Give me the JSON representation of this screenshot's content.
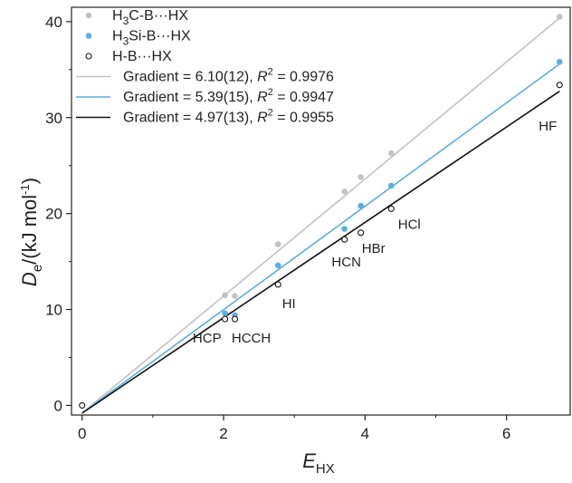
{
  "chart_data": {
    "type": "scatter",
    "xlabel": {
      "main": "E",
      "sub": "HX"
    },
    "ylabel": {
      "main": "D",
      "sub": "e",
      "rest": "/(kJ mol",
      "sup": "-1",
      "close": ")"
    },
    "xlim": [
      -0.15,
      6.9
    ],
    "ylim": [
      -1,
      41.5
    ],
    "x_ticks": [
      0,
      2,
      4,
      6
    ],
    "y_ticks": [
      0,
      10,
      20,
      30,
      40
    ],
    "grid": false,
    "legend_position": "top-left",
    "series": [
      {
        "name": {
          "pre": "H",
          "sub": "3",
          "post": "C-B···HX"
        },
        "color": "#c2c2c2",
        "marker": "filled",
        "x": [
          2.02,
          2.16,
          2.77,
          3.71,
          3.94,
          4.37,
          6.75
        ],
        "y": [
          11.5,
          11.4,
          16.8,
          22.3,
          23.8,
          26.3,
          40.5
        ]
      },
      {
        "name": {
          "pre": "H",
          "sub": "3",
          "post": "Si-B···HX"
        },
        "color": "#5aaee2",
        "marker": "filled",
        "x": [
          2.02,
          2.16,
          2.77,
          3.71,
          3.94,
          4.37,
          6.75
        ],
        "y": [
          9.6,
          9.4,
          14.6,
          18.4,
          20.8,
          22.9,
          35.8
        ]
      },
      {
        "name": {
          "pre": "H-B···HX",
          "sub": "",
          "post": ""
        },
        "color": "#111111",
        "marker": "open",
        "x": [
          0.0,
          2.02,
          2.16,
          2.77,
          3.71,
          3.94,
          4.37,
          6.75
        ],
        "y": [
          0.0,
          9.0,
          9.0,
          12.6,
          17.3,
          18.0,
          20.5,
          33.4
        ]
      }
    ],
    "fits": [
      {
        "color": "#c2c2c2",
        "gradient": 6.1,
        "intercept": -0.8,
        "label_pre": "Gradient = 6.10(12), ",
        "r": "R",
        "sup": "2",
        "label_post": " = 0.9976"
      },
      {
        "color": "#5aaee2",
        "gradient": 5.39,
        "intercept": -0.8,
        "label_pre": "Gradient = 5.39(15), ",
        "r": "R",
        "sup": "2",
        "label_post": " = 0.9947"
      },
      {
        "color": "#111111",
        "gradient": 4.97,
        "intercept": -0.8,
        "label_pre": "Gradient = 4.97(13), ",
        "r": "R",
        "sup": "2",
        "label_post": " = 0.9955"
      }
    ],
    "fit_x_range": [
      0,
      6.75
    ],
    "annotations": [
      {
        "text": "HCP",
        "x": 2.02,
        "y": 9.0,
        "anchor": "end",
        "dx": -4,
        "dy": 26
      },
      {
        "text": "HCCH",
        "x": 2.16,
        "y": 9.0,
        "anchor": "middle",
        "dx": 18,
        "dy": 26
      },
      {
        "text": "HI",
        "x": 2.77,
        "y": 12.6,
        "anchor": "middle",
        "dx": 12,
        "dy": 26
      },
      {
        "text": "HCN",
        "x": 3.71,
        "y": 17.3,
        "anchor": "middle",
        "dx": 2,
        "dy": 30
      },
      {
        "text": "HBr",
        "x": 3.94,
        "y": 18.0,
        "anchor": "middle",
        "dx": 14,
        "dy": 22
      },
      {
        "text": "HCl",
        "x": 4.37,
        "y": 20.5,
        "anchor": "middle",
        "dx": 20,
        "dy": 22
      },
      {
        "text": "HF",
        "x": 6.75,
        "y": 33.4,
        "anchor": "end",
        "dx": -3,
        "dy": 50
      }
    ]
  }
}
